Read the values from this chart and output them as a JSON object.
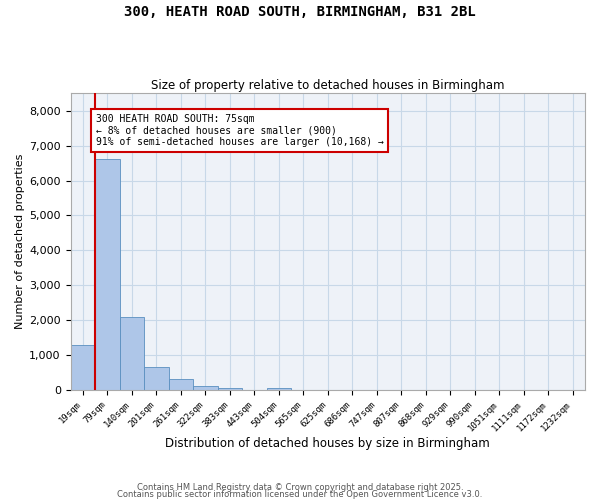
{
  "title_line1": "300, HEATH ROAD SOUTH, BIRMINGHAM, B31 2BL",
  "title_line2": "Size of property relative to detached houses in Birmingham",
  "xlabel": "Distribution of detached houses by size in Birmingham",
  "ylabel": "Number of detached properties",
  "annotation_title": "300 HEATH ROAD SOUTH: 75sqm",
  "annotation_line2": "← 8% of detached houses are smaller (900)",
  "annotation_line3": "91% of semi-detached houses are larger (10,168) →",
  "footer_line1": "Contains HM Land Registry data © Crown copyright and database right 2025.",
  "footer_line2": "Contains public sector information licensed under the Open Government Licence v3.0.",
  "bar_labels": [
    "19sqm",
    "79sqm",
    "140sqm",
    "201sqm",
    "261sqm",
    "322sqm",
    "383sqm",
    "443sqm",
    "504sqm",
    "565sqm",
    "625sqm",
    "686sqm",
    "747sqm",
    "807sqm",
    "868sqm",
    "929sqm",
    "990sqm",
    "1051sqm",
    "1111sqm",
    "1172sqm",
    "1232sqm"
  ],
  "bar_values": [
    1300,
    6620,
    2100,
    670,
    310,
    110,
    70,
    0,
    60,
    0,
    0,
    0,
    0,
    0,
    0,
    0,
    0,
    0,
    0,
    0,
    0
  ],
  "bar_color": "#aec6e8",
  "bar_edge_color": "#5a8fc0",
  "grid_color": "#c8d8e8",
  "bg_color": "#eef2f8",
  "vline_color": "#cc0000",
  "annotation_box_color": "#cc0000",
  "ylim": [
    0,
    8500
  ],
  "yticks": [
    0,
    1000,
    2000,
    3000,
    4000,
    5000,
    6000,
    7000,
    8000
  ],
  "vline_position": 0.5
}
